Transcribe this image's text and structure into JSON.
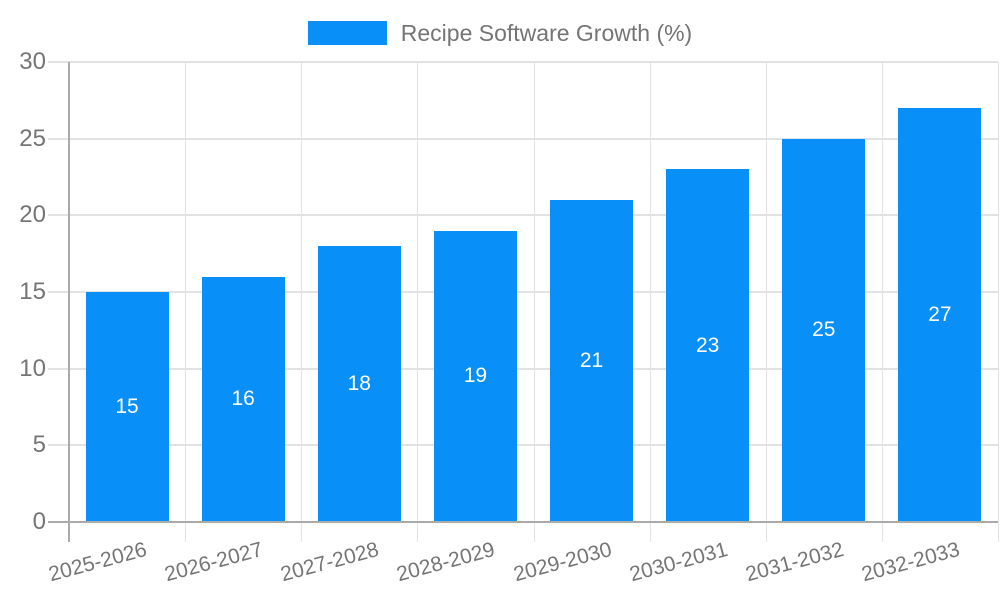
{
  "chart_data": {
    "type": "bar",
    "title": "Recipe Software Growth (%)",
    "legend_label": "Recipe Software Growth (%)",
    "legend_position": "top",
    "categories": [
      "2025-2026",
      "2026-2027",
      "2027-2028",
      "2028-2029",
      "2029-2030",
      "2030-2031",
      "2031-2032",
      "2032-2033"
    ],
    "values": [
      15,
      16,
      18,
      19,
      21,
      23,
      25,
      27
    ],
    "xlabel": "",
    "ylabel": "",
    "ylim": [
      0,
      30
    ],
    "yticks": [
      0,
      5,
      10,
      15,
      20,
      25,
      30
    ],
    "grid": true,
    "bar_value_labels_shown": true,
    "colors": {
      "bar": "#0990F8",
      "bar_value_text": "#FFFFFF",
      "axis_text": "#757575",
      "axis_line": "#AAAAAA",
      "gridline": "#E2E2E2"
    }
  }
}
